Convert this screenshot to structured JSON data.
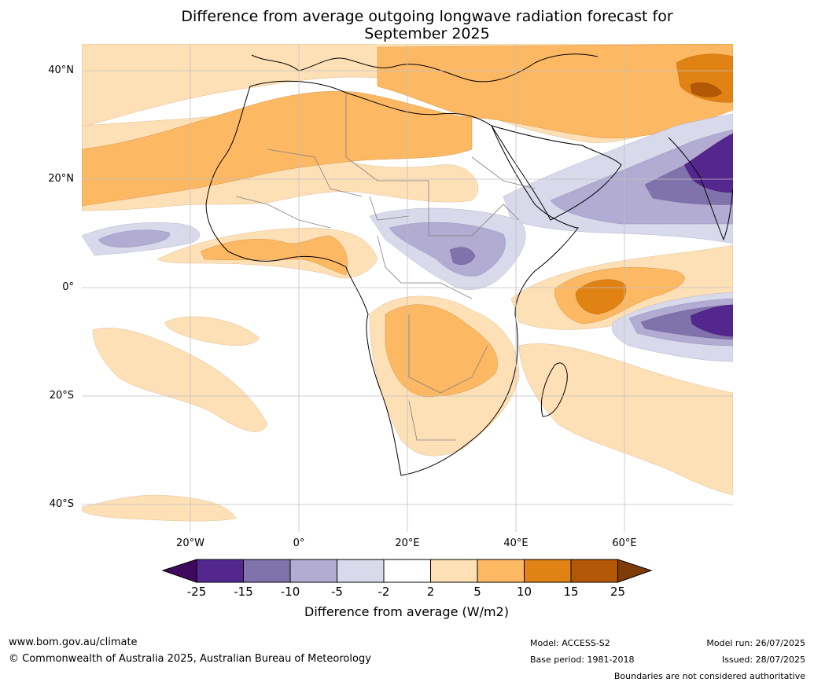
{
  "title": {
    "line1": "Difference from average outgoing longwave radiation forecast for",
    "line2": "September 2025"
  },
  "map": {
    "lat_labels": [
      "40°N",
      "20°N",
      "0°",
      "20°S",
      "40°S"
    ],
    "lon_labels": [
      "20°W",
      "0°",
      "20°E",
      "40°E",
      "60°E"
    ],
    "land_color": "#ffffff",
    "gridline_color": "#c0c0c0",
    "coast_color": "#000000",
    "border_color": "#808080"
  },
  "colorbar": {
    "label": "Difference from average (W/m2)",
    "ticks": [
      "-25",
      "-15",
      "-10",
      "-5",
      "-2",
      "2",
      "5",
      "10",
      "15",
      "25"
    ],
    "colors": [
      "#3f0a5e",
      "#54278f",
      "#8073ac",
      "#b2abd2",
      "#d8daeb",
      "#ffffff",
      "#fee0b6",
      "#fdb863",
      "#e08214",
      "#b35806",
      "#7f3b08"
    ]
  },
  "footer": {
    "website": "www.bom.gov.au/climate",
    "copyright": "© Commonwealth of Australia 2025, Australian Bureau of Meteorology",
    "model": "Model: ACCESS-S2",
    "base_period": "Base period: 1981-2018",
    "model_run": "Model run: 26/07/2025",
    "issued": "Issued: 28/07/2025",
    "disclaimer": "Boundaries are not considered authoritative"
  }
}
